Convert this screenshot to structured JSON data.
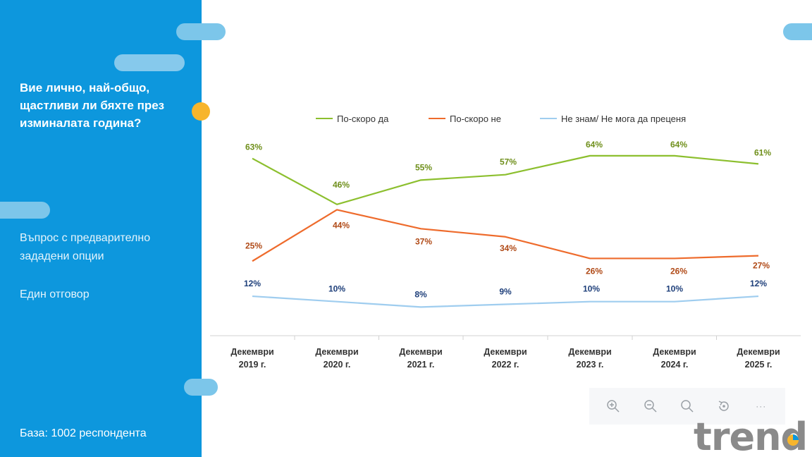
{
  "sidebar": {
    "question": "Вие лично, най-общо, щастливи ли бяхте през изминалата година?",
    "note1": "Въпрос с предварително зададени опции",
    "note2": "Един отговор",
    "base": "База:  1002 респондента"
  },
  "colors": {
    "sidebar": "#0d97dd",
    "yes": "#8cbf2e",
    "no": "#ee6b2c",
    "dont_know": "#9fcdef",
    "yes_label": "#6f8f1b",
    "no_label": "#b04a17",
    "dk_label": "#1e3f7a"
  },
  "chart_data": {
    "type": "line",
    "title": "",
    "categories": [
      [
        "Декември",
        "2019 г."
      ],
      [
        "Декември",
        "2020 г."
      ],
      [
        "Декември",
        "2021 г."
      ],
      [
        "Декември",
        "2022 г."
      ],
      [
        "Декември",
        "2023 г."
      ],
      [
        "Декември",
        "2024 г."
      ],
      [
        "Декември",
        "2025 г."
      ]
    ],
    "series": [
      {
        "key": "yes",
        "name": "По-скоро да",
        "values": [
          63,
          46,
          55,
          57,
          64,
          64,
          61
        ]
      },
      {
        "key": "no",
        "name": "По-скоро не",
        "values": [
          25,
          44,
          37,
          34,
          26,
          26,
          27
        ]
      },
      {
        "key": "dont_know",
        "name": "Не знам/ Не мога да преценя",
        "values": [
          12,
          10,
          8,
          9,
          10,
          10,
          12
        ]
      }
    ],
    "value_suffix": "%",
    "ylim": [
      0,
      70
    ],
    "legend": "top",
    "grid": false
  },
  "toolbar": {
    "icons": [
      "zoom-in-icon",
      "zoom-out-icon",
      "search-icon",
      "reset-icon",
      "more-icon"
    ],
    "more_label": "···"
  },
  "logo": {
    "text": "trend"
  }
}
